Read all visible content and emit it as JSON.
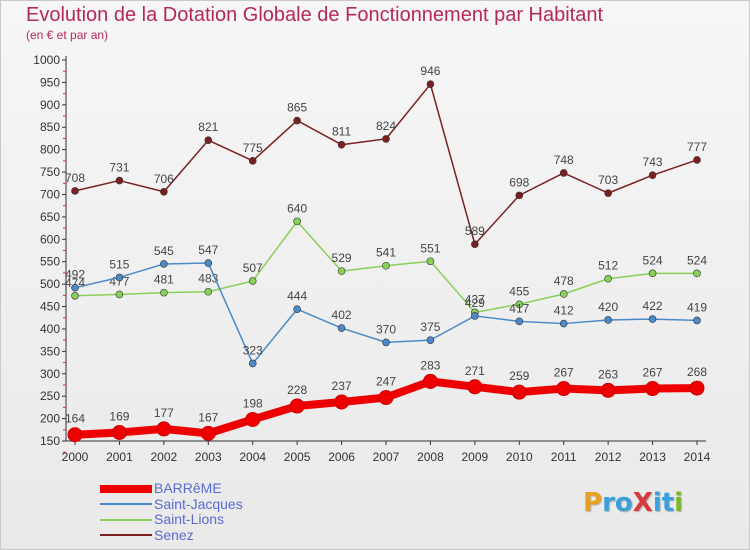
{
  "title": "Evolution de la Dotation Globale de Fonctionnement par Habitant",
  "subtitle": "(en € et par an)",
  "logo": {
    "text": "ProXiti",
    "letter_colors": [
      "#e8a020",
      "#3aa0d8",
      "#3aa0d8",
      "#d83a3a",
      "#3aa0d8",
      "#3aa0d8",
      "#7ab828"
    ]
  },
  "chart_data": {
    "type": "line",
    "title": "Evolution de la Dotation Globale de Fonctionnement par Habitant",
    "subtitle": "(en € et par an)",
    "x": [
      "2000",
      "2001",
      "2002",
      "2003",
      "2004",
      "2005",
      "2006",
      "2007",
      "2008",
      "2009",
      "2010",
      "2011",
      "2012",
      "2013",
      "2014"
    ],
    "yticks": [
      150,
      200,
      250,
      300,
      350,
      400,
      450,
      500,
      550,
      600,
      650,
      700,
      750,
      800,
      850,
      900,
      950,
      1000
    ],
    "ylim": [
      150,
      1000
    ],
    "grid": false,
    "legend_position": "bottom-left",
    "series": [
      {
        "name": "BARRêME",
        "color": "#ee0000",
        "values": [
          164,
          169,
          177,
          167,
          198,
          228,
          237,
          247,
          283,
          271,
          259,
          267,
          263,
          267,
          268
        ]
      },
      {
        "name": "Saint-Jacques",
        "color": "#4a8ac8",
        "values": [
          492,
          515,
          545,
          547,
          323,
          444,
          402,
          370,
          375,
          429,
          417,
          412,
          420,
          422,
          419
        ]
      },
      {
        "name": "Saint-Lions",
        "color": "#88d058",
        "values": [
          474,
          477,
          481,
          483,
          507,
          640,
          529,
          541,
          551,
          437,
          455,
          478,
          512,
          524,
          524
        ]
      },
      {
        "name": "Senez",
        "color": "#7a2020",
        "values": [
          708,
          731,
          706,
          821,
          775,
          865,
          811,
          824,
          946,
          589,
          698,
          748,
          703,
          743,
          777
        ]
      }
    ]
  }
}
